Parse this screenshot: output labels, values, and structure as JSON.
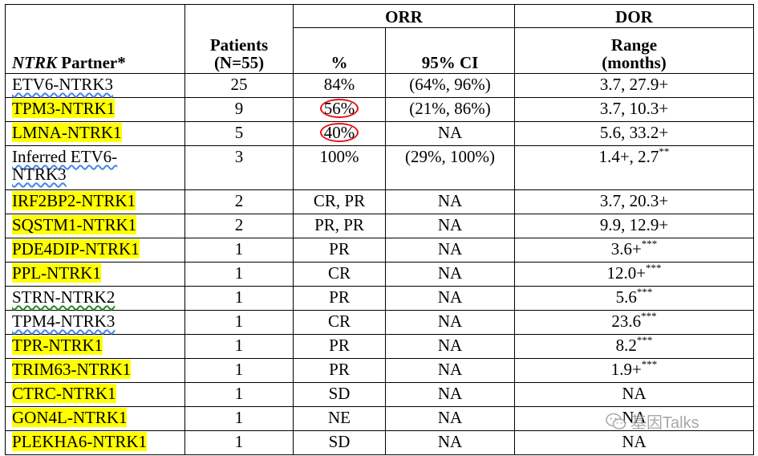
{
  "table": {
    "headers": {
      "partner_italic": "NTRK",
      "partner_rest": " Partner*",
      "patients_line1": "Patients",
      "patients_line2": "(N=55)",
      "orr_group": "ORR",
      "dor_group": "DOR",
      "orr_pct": "%",
      "orr_ci": "95% CI",
      "dor_line1": "Range",
      "dor_line2": "(months)"
    },
    "rows": [
      {
        "partner": "ETV6-NTRK3",
        "patients": "25",
        "pct": "84%",
        "ci": "(64%, 96%)",
        "dor": "3.7, 27.9+",
        "dor_sup": ""
      },
      {
        "partner": "TPM3-NTRK1",
        "patients": "9",
        "pct": "56%",
        "ci": "(21%, 86%)",
        "dor": "3.7, 10.3+",
        "dor_sup": ""
      },
      {
        "partner": "LMNA-NTRK1",
        "patients": "5",
        "pct": "40%",
        "ci": "NA",
        "dor": "5.6, 33.2+",
        "dor_sup": ""
      },
      {
        "partner_line1": "Inferred ETV6-",
        "partner_line2": "NTRK3",
        "patients": "3",
        "pct": "100%",
        "ci": "(29%, 100%)",
        "dor": "1.4+, 2.7",
        "dor_sup": "**"
      },
      {
        "partner": "IRF2BP2-NTRK1",
        "patients": "2",
        "pct": "CR, PR",
        "ci": "NA",
        "dor": "3.7, 20.3+",
        "dor_sup": ""
      },
      {
        "partner": "SQSTM1-NTRK1",
        "patients": "2",
        "pct": "PR, PR",
        "ci": "NA",
        "dor": "9.9, 12.9+",
        "dor_sup": ""
      },
      {
        "partner": "PDE4DIP-NTRK1",
        "patients": "1",
        "pct": "PR",
        "ci": "NA",
        "dor": "3.6+",
        "dor_sup": "***"
      },
      {
        "partner": "PPL-NTRK1",
        "patients": "1",
        "pct": "CR",
        "ci": "NA",
        "dor": "12.0+",
        "dor_sup": "***"
      },
      {
        "partner": "STRN-NTRK2",
        "patients": "1",
        "pct": "PR",
        "ci": "NA",
        "dor": "5.6",
        "dor_sup": "***"
      },
      {
        "partner": "TPM4-NTRK3",
        "patients": "1",
        "pct": "CR",
        "ci": "NA",
        "dor": "23.6",
        "dor_sup": "***"
      },
      {
        "partner": "TPR-NTRK1",
        "patients": "1",
        "pct": "PR",
        "ci": "NA",
        "dor": "8.2",
        "dor_sup": "***"
      },
      {
        "partner": "TRIM63-NTRK1",
        "patients": "1",
        "pct": "PR",
        "ci": "NA",
        "dor": "1.9+",
        "dor_sup": "***"
      },
      {
        "partner": "CTRC-NTRK1",
        "patients": "1",
        "pct": "SD",
        "ci": "NA",
        "dor": "NA",
        "dor_sup": ""
      },
      {
        "partner": "GON4L-NTRK1",
        "patients": "1",
        "pct": "NE",
        "ci": "NA",
        "dor": "NA",
        "dor_sup": ""
      },
      {
        "partner": "PLEKHA6-NTRK1",
        "patients": "1",
        "pct": "SD",
        "ci": "NA",
        "dor": "NA",
        "dor_sup": ""
      }
    ]
  },
  "watermark": {
    "text": "基因Talks",
    "icon": "wechat-icon"
  },
  "colors": {
    "highlight": "#ffff00",
    "circle": "#e8141a",
    "squiggle_blue": "#4a86e8",
    "squiggle_green": "#2e8b2e"
  }
}
